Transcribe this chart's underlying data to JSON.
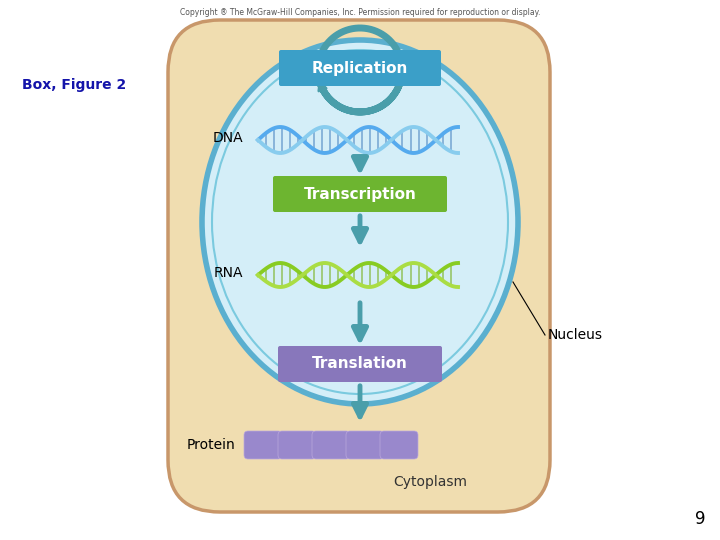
{
  "copyright_text": "Copyright ® The McGraw-Hill Companies, Inc. Permission required for reproduction or display.",
  "box_figure_text": "Box, Figure 2",
  "page_number": "9",
  "bg_color": "#FFFFFF",
  "cell_bg_color": "#F0DDB0",
  "cell_border_color": "#C8976A",
  "nucleus_bg_color": "#D4EEF8",
  "nucleus_border1_color": "#5AAFCF",
  "nucleus_border2_color": "#7BCADF",
  "replication_label": "Replication",
  "replication_color": "#3B9FC8",
  "transcription_label": "Transcription",
  "transcription_color": "#6DB530",
  "translation_label": "Translation",
  "translation_color": "#8877BB",
  "arrow_color": "#4A9EAA",
  "dna_label": "DNA",
  "rna_label": "RNA",
  "protein_label": "Protein",
  "nucleus_label": "Nucleus",
  "cytoplasm_label": "Cytoplasm",
  "box_figure_color": "#1414AA",
  "dna_color1": "#55AAEE",
  "dna_color2": "#88CCEE",
  "rna_color1": "#88CC22",
  "rna_color2": "#AADD44",
  "protein_color": "#9988CC"
}
